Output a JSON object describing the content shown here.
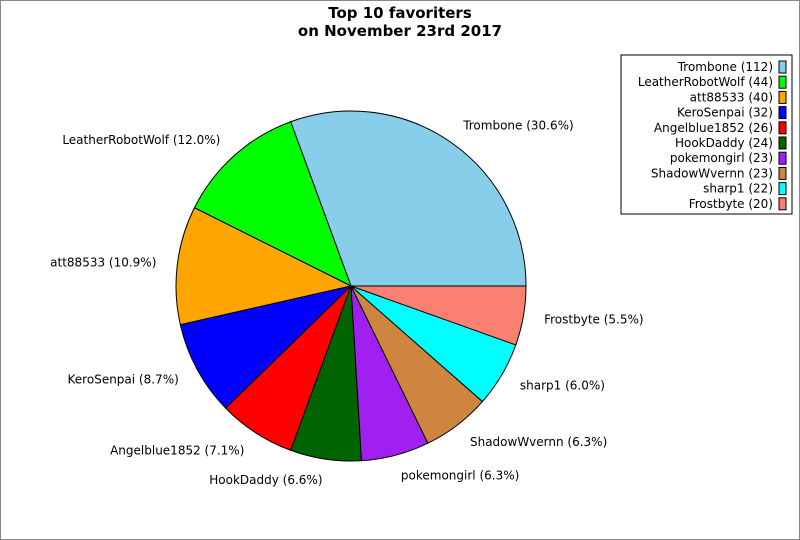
{
  "chart_data": {
    "type": "pie",
    "title": [
      "Top 10 favoriters",
      "on November 23rd 2017"
    ],
    "start_angle_deg": 0,
    "direction": "counterclockwise",
    "legend_position": "top-right",
    "slices": [
      {
        "name": "Trombone",
        "value": 112,
        "percent": "30.6%",
        "color": "#87CEEB"
      },
      {
        "name": "LeatherRobotWolf",
        "value": 44,
        "percent": "12.0%",
        "color": "#00FF00"
      },
      {
        "name": "att88533",
        "value": 40,
        "percent": "10.9%",
        "color": "#FFA500"
      },
      {
        "name": "KeroSenpai",
        "value": 32,
        "percent": "8.7%",
        "color": "#0000FF"
      },
      {
        "name": "Angelblue1852",
        "value": 26,
        "percent": "7.1%",
        "color": "#FF0000"
      },
      {
        "name": "HookDaddy",
        "value": 24,
        "percent": "6.6%",
        "color": "#006400"
      },
      {
        "name": "pokemongirl",
        "value": 23,
        "percent": "6.3%",
        "color": "#A020F0"
      },
      {
        "name": "ShadowWvernn",
        "value": 23,
        "percent": "6.3%",
        "color": "#CD853F"
      },
      {
        "name": "sharp1",
        "value": 22,
        "percent": "6.0%",
        "color": "#00FFFF"
      },
      {
        "name": "Frostbyte",
        "value": 20,
        "percent": "5.5%",
        "color": "#FA8072"
      }
    ]
  }
}
